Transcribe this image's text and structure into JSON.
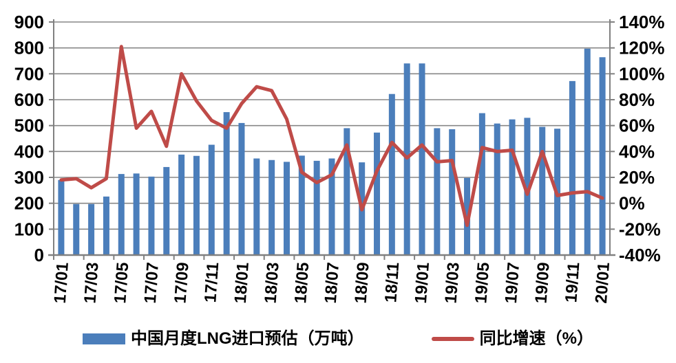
{
  "colors": {
    "bar": "#4B7EBB",
    "line": "#BF4B48",
    "gridline": "#878787",
    "axis": "#808080",
    "text": "#000000",
    "background": "#ffffff"
  },
  "legend": {
    "bar_label": "中国月度LNG进口预估（万吨）",
    "line_label": "同比增速（%）"
  },
  "chart_data": {
    "type": "bar",
    "subtype": "bar+line dual axis",
    "title": "",
    "xlabel": "",
    "ylabel_left": "",
    "ylabel_right": "",
    "grid": true,
    "legend_position": "bottom",
    "months": [
      "17/01",
      "17/02",
      "17/03",
      "17/04",
      "17/05",
      "17/06",
      "17/07",
      "17/08",
      "17/09",
      "17/10",
      "17/11",
      "17/12",
      "18/01",
      "18/02",
      "18/03",
      "18/04",
      "18/05",
      "18/06",
      "18/07",
      "18/08",
      "18/09",
      "18/10",
      "18/11",
      "18/12",
      "19/01",
      "19/02",
      "19/03",
      "19/04",
      "19/05",
      "19/06",
      "19/07",
      "19/08",
      "19/09",
      "19/10",
      "19/11",
      "19/12",
      "20/01"
    ],
    "x_tick_labels": [
      "17/01",
      "17/03",
      "17/05",
      "17/07",
      "17/09",
      "17/11",
      "18/01",
      "18/03",
      "18/05",
      "18/07",
      "18/09",
      "18/11",
      "19/01",
      "19/03",
      "19/05",
      "19/07",
      "19/09",
      "19/11",
      "20/01"
    ],
    "series": [
      {
        "name": "中国月度LNG进口预估（万吨）",
        "type": "bar",
        "axis": "left",
        "values": [
          290,
          197,
          197,
          226,
          313,
          315,
          303,
          340,
          388,
          383,
          426,
          552,
          510,
          373,
          367,
          360,
          384,
          364,
          373,
          490,
          358,
          473,
          622,
          740,
          740,
          490,
          486,
          298,
          548,
          508,
          524,
          530,
          495,
          488,
          672,
          797,
          764
        ]
      },
      {
        "name": "同比增速（%）",
        "type": "line",
        "axis": "right",
        "values_pct": [
          18,
          19,
          12,
          19,
          121,
          58,
          71,
          44,
          100,
          79,
          64,
          58,
          77,
          90,
          87,
          65,
          24,
          16,
          22,
          45,
          -5,
          25,
          47,
          35,
          45,
          32,
          33,
          -17,
          43,
          40,
          41,
          7,
          40,
          6,
          8,
          9,
          4
        ]
      }
    ],
    "left_axis": {
      "min": 0,
      "max": 900,
      "step": 100,
      "tick_labels": [
        "0",
        "100",
        "200",
        "300",
        "400",
        "500",
        "600",
        "700",
        "800",
        "900"
      ]
    },
    "right_axis": {
      "min": -40,
      "max": 140,
      "step": 20,
      "tick_labels": [
        "-40%",
        "-20%",
        "0%",
        "20%",
        "40%",
        "60%",
        "80%",
        "100%",
        "120%",
        "140%"
      ]
    }
  }
}
